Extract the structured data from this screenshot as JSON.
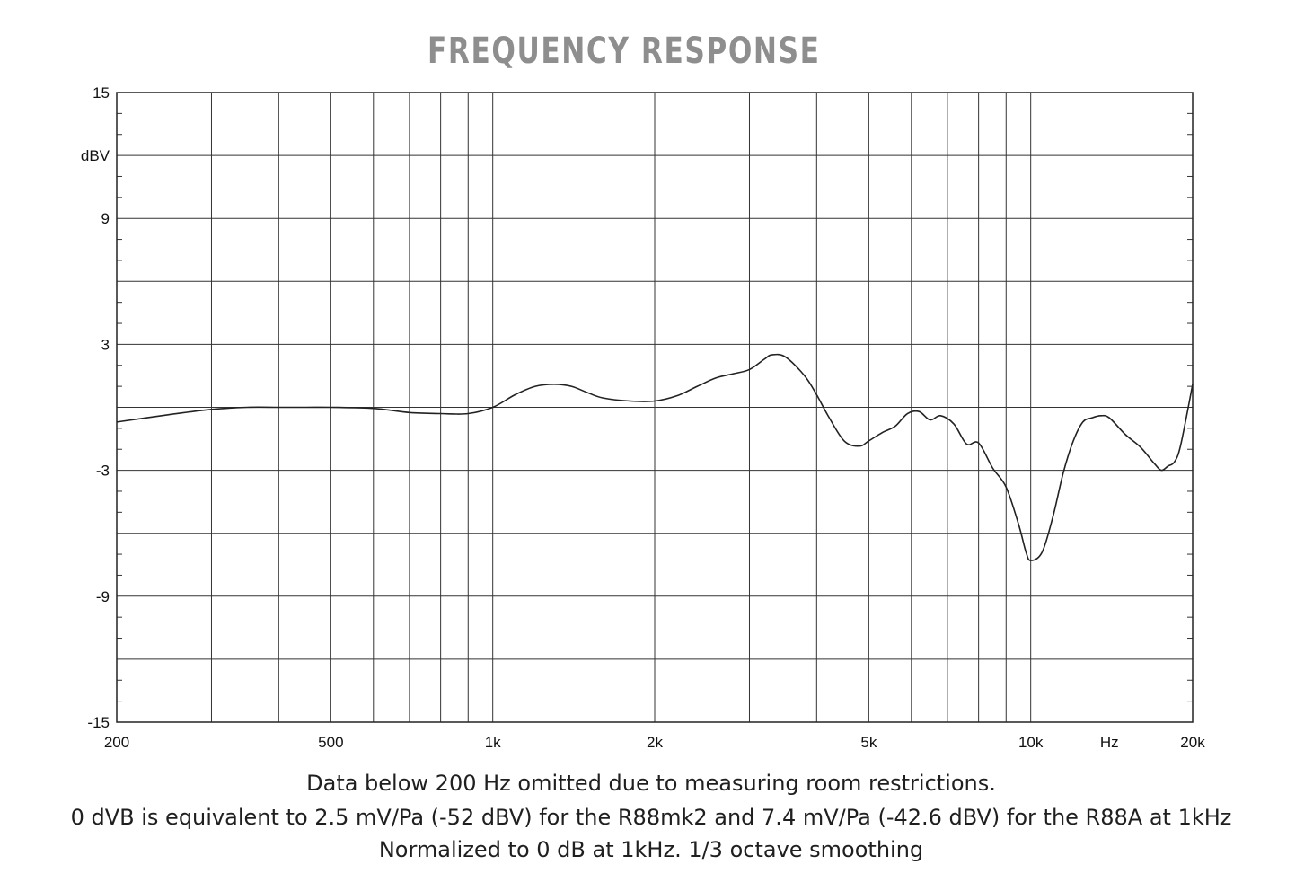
{
  "title": "FREQUENCY RESPONSE",
  "notes": [
    "Data below 200 Hz omitted due to measuring room restrictions.",
    "0 dVB is equivalent to 2.5 mV/Pa (-52 dBV) for the R88mk2 and 7.4 mV/Pa (-42.6 dBV) for the R88A at 1kHz",
    "Normalized to 0 dB at 1kHz. 1/3 octave smoothing"
  ],
  "chart_data": {
    "type": "line",
    "title": "FREQUENCY RESPONSE",
    "xlabel": "Hz",
    "ylabel": "dBV",
    "x_scale": "log",
    "xlim": [
      200,
      20000
    ],
    "ylim": [
      -15,
      15
    ],
    "grid": true,
    "x_ticks": [
      200,
      500,
      1000,
      2000,
      5000,
      10000,
      20000
    ],
    "x_tick_labels": [
      "200",
      "500",
      "1k",
      "2k",
      "5k",
      "10k",
      "20k"
    ],
    "y_ticks": [
      15,
      9,
      3,
      -3,
      -9,
      -15
    ],
    "y_tick_labels": [
      "15",
      "9",
      "3",
      "-3",
      "-9",
      "-15"
    ],
    "series": [
      {
        "color": "#222222",
        "x": [
          200,
          250,
          300,
          350,
          400,
          450,
          500,
          600,
          700,
          800,
          900,
          1000,
          1100,
          1200,
          1300,
          1400,
          1500,
          1600,
          1800,
          2000,
          2200,
          2400,
          2600,
          2800,
          3000,
          3200,
          3300,
          3500,
          3800,
          4000,
          4200,
          4500,
          4800,
          5000,
          5300,
          5600,
          5900,
          6200,
          6500,
          6800,
          7200,
          7600,
          8000,
          8500,
          9000,
          9500,
          9800,
          10000,
          10500,
          11000,
          11500,
          12000,
          12500,
          13000,
          13500,
          14000,
          15000,
          16000,
          17000,
          17500,
          18000,
          18500,
          19000,
          20000
        ],
        "y": [
          -0.7,
          -0.35,
          -0.1,
          0.0,
          0.0,
          0.0,
          0.0,
          -0.05,
          -0.25,
          -0.3,
          -0.3,
          0.0,
          0.6,
          1.0,
          1.1,
          1.0,
          0.7,
          0.45,
          0.3,
          0.3,
          0.55,
          1.0,
          1.4,
          1.6,
          1.8,
          2.3,
          2.5,
          2.4,
          1.5,
          0.6,
          -0.4,
          -1.6,
          -1.85,
          -1.6,
          -1.2,
          -0.9,
          -0.3,
          -0.2,
          -0.6,
          -0.4,
          -0.8,
          -1.75,
          -1.7,
          -2.9,
          -3.8,
          -5.6,
          -6.9,
          -7.3,
          -6.9,
          -5.2,
          -3.1,
          -1.6,
          -0.7,
          -0.5,
          -0.4,
          -0.5,
          -1.3,
          -1.9,
          -2.7,
          -3.0,
          -2.8,
          -2.6,
          -1.8,
          1.1
        ]
      }
    ]
  }
}
